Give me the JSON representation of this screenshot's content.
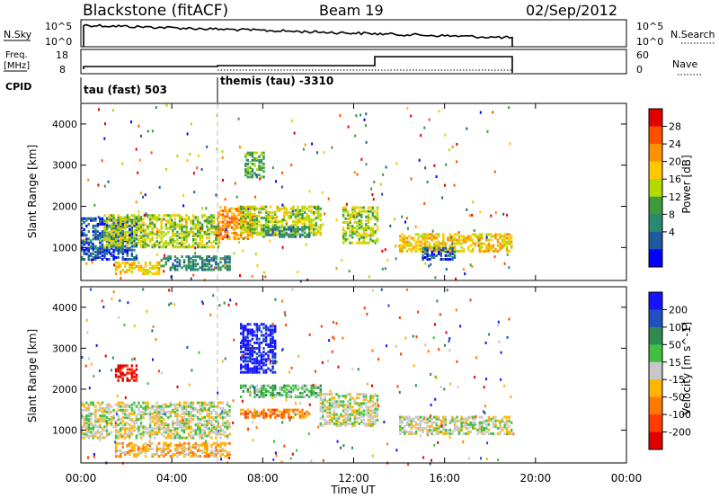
{
  "header": {
    "station": "Blackstone (fitACF)",
    "beam": "Beam 19",
    "date": "02/Sep/2012"
  },
  "top_panels": {
    "nsky_label": "N.Sky",
    "nsky_ticks": [
      "10^5",
      "10^0"
    ],
    "nsearch_label": "N.Search",
    "nsearch_ticks": [
      "10^5",
      "10^0"
    ],
    "freq_label": "Freq.",
    "freq_unit": "[MHz]",
    "freq_ticks": [
      "18",
      "8"
    ],
    "nave_label": "Nave",
    "nave_ticks": [
      "60",
      "0"
    ],
    "cpid_label": "CPID",
    "cpid_segments": [
      {
        "label": "tau (fast) 503",
        "start_hour": 0
      },
      {
        "label": "themis (tau) -3310",
        "start_hour": 6
      }
    ]
  },
  "chart_data": [
    {
      "type": "heatmap",
      "panel": "power",
      "ylabel": "Slant Range [km]",
      "yticks": [
        "4000",
        "3000",
        "2000",
        "1000"
      ],
      "ylim": [
        200,
        4500
      ],
      "xlim": [
        "00:00",
        "24:00"
      ],
      "colorbar_label": "Power [dB]",
      "colorbar_ticks": [
        "28",
        "24",
        "20",
        "16",
        "12",
        "8",
        "4"
      ],
      "colors": [
        "#e00000",
        "#ff5000",
        "#ff9000",
        "#ffc800",
        "#b4d800",
        "#3c9c3c",
        "#2a8a70",
        "#1e5aa0",
        "#0000ff"
      ],
      "echo_bands": [
        {
          "t0": 0.0,
          "t1": 2.5,
          "r0": 700,
          "r1": 1700,
          "level": 7
        },
        {
          "t0": 1.0,
          "t1": 6.0,
          "r0": 1000,
          "r1": 1800,
          "level": 4
        },
        {
          "t0": 1.5,
          "t1": 3.5,
          "r0": 350,
          "r1": 650,
          "level": 3
        },
        {
          "t0": 3.5,
          "t1": 6.5,
          "r0": 450,
          "r1": 800,
          "level": 6
        },
        {
          "t0": 6.0,
          "t1": 7.5,
          "r0": 1200,
          "r1": 2000,
          "level": 2
        },
        {
          "t0": 7.0,
          "t1": 10.5,
          "r0": 1300,
          "r1": 2000,
          "level": 4
        },
        {
          "t0": 7.2,
          "t1": 8.0,
          "r0": 2700,
          "r1": 3300,
          "level": 5
        },
        {
          "t0": 8.0,
          "t1": 10.0,
          "r0": 1250,
          "r1": 1500,
          "level": 6
        },
        {
          "t0": 11.5,
          "t1": 13.0,
          "r0": 1100,
          "r1": 2000,
          "level": 4
        },
        {
          "t0": 14.0,
          "t1": 19.0,
          "r0": 900,
          "r1": 1350,
          "level": 3
        },
        {
          "t0": 15.0,
          "t1": 16.5,
          "r0": 700,
          "r1": 1000,
          "level": 7
        }
      ]
    },
    {
      "type": "heatmap",
      "panel": "velocity",
      "ylabel": "Slant Range [km]",
      "yticks": [
        "4000",
        "3000",
        "2000",
        "1000"
      ],
      "ylim": [
        200,
        4500
      ],
      "xlabel": "Time UT",
      "xticks": [
        "00:00",
        "04:00",
        "08:00",
        "12:00",
        "16:00",
        "20:00",
        "00:00"
      ],
      "xlim": [
        "00:00",
        "24:00"
      ],
      "colorbar_label": "Velocity [m s^-1]",
      "colorbar_ticks": [
        "200",
        "100",
        "50",
        "15",
        "-15",
        "-50",
        "-100",
        "-200"
      ],
      "colors": [
        "#1414ff",
        "#2050c0",
        "#2e8a50",
        "#40c040",
        "#c8c8c8",
        "#ffb400",
        "#ff7800",
        "#ff3c00",
        "#e00000"
      ],
      "echo_bands": [
        {
          "t0": 0.0,
          "t1": 6.5,
          "r0": 800,
          "r1": 1700,
          "level": 4
        },
        {
          "t0": 1.5,
          "t1": 2.5,
          "r0": 2200,
          "r1": 2600,
          "level": 8
        },
        {
          "t0": 1.5,
          "t1": 6.5,
          "r0": 350,
          "r1": 700,
          "level": 5
        },
        {
          "t0": 7.0,
          "t1": 8.5,
          "r0": 2400,
          "r1": 3600,
          "level": 0
        },
        {
          "t0": 7.0,
          "t1": 10.5,
          "r0": 1800,
          "r1": 2100,
          "level": 3
        },
        {
          "t0": 7.0,
          "t1": 10.0,
          "r0": 1300,
          "r1": 1500,
          "level": 6
        },
        {
          "t0": 10.5,
          "t1": 13.0,
          "r0": 1100,
          "r1": 1900,
          "level": 4
        },
        {
          "t0": 14.0,
          "t1": 19.0,
          "r0": 900,
          "r1": 1350,
          "level": 4
        }
      ]
    }
  ]
}
